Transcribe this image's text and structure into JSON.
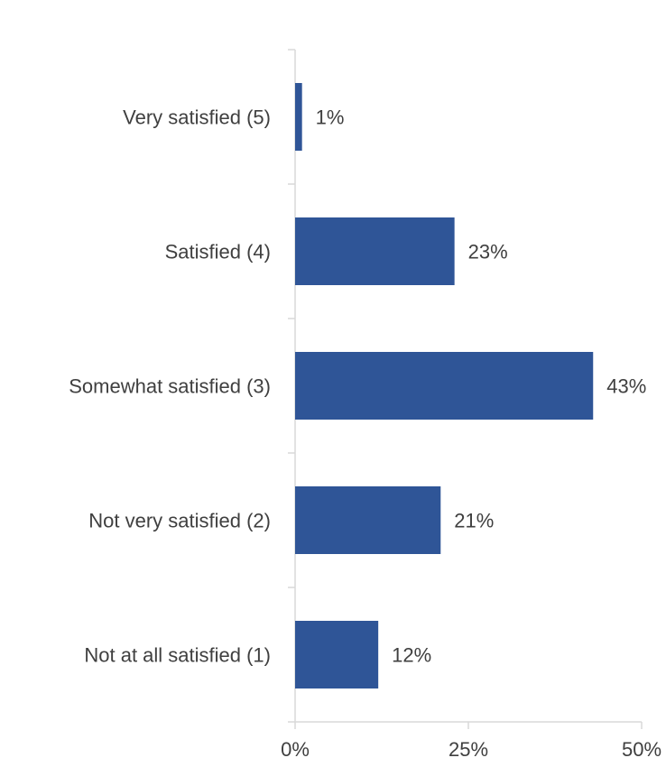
{
  "chart_data": {
    "type": "bar",
    "orientation": "horizontal",
    "categories": [
      "Very satisfied (5)",
      "Satisfied (4)",
      "Somewhat satisfied (3)",
      "Not very satisfied (2)",
      "Not at all satisfied (1)"
    ],
    "values": [
      1,
      23,
      43,
      21,
      12
    ],
    "value_labels": [
      "1%",
      "23%",
      "43%",
      "21%",
      "12%"
    ],
    "xlim": [
      0,
      50
    ],
    "x_ticks": [
      0,
      25,
      50
    ],
    "x_tick_labels": [
      "0%",
      "25%",
      "50%"
    ],
    "title": "",
    "xlabel": "",
    "ylabel": "",
    "grid": false,
    "legend": "none",
    "colors": {
      "bar": "#2F5597",
      "axis": "#d9d9d9",
      "text": "#3f3f3f"
    }
  }
}
